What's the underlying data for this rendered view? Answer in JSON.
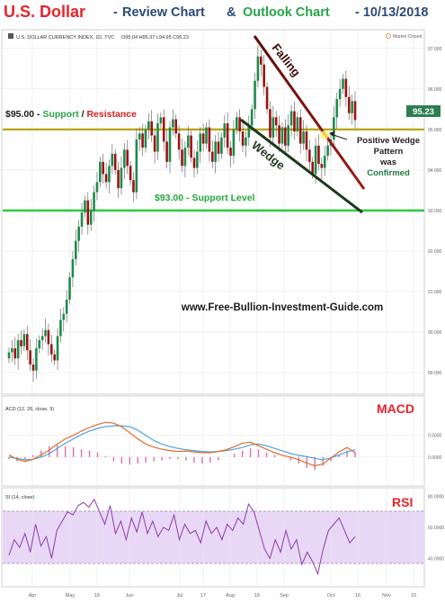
{
  "header": {
    "asset": "U.S. Dollar",
    "dash": "-",
    "review": "Review Chart",
    "amp": "&",
    "outlook": "Outlook Chart",
    "date_part": "- 10/13/2018"
  },
  "colors": {
    "asset": "#e8232a",
    "navy": "#2b4a78",
    "green": "#27a44a",
    "support": "#2ecc40",
    "resistance": "#d42020",
    "bull": "#1f8a4c",
    "bear": "#9e1212",
    "falling_line": "#6e0f0f",
    "wedge_line": "#1c3a1c",
    "macd": "#e46a2a",
    "signal": "#4da3e0",
    "hist": "#d86fa8",
    "rsi": "#8e3aa8",
    "rsi_band": "#e8d8f6",
    "grid": "#e6e6e6",
    "price_tag": "#2e7d4f"
  },
  "chart_data": [
    {
      "type": "candlestick",
      "legend": "U.S. DOLLAR CURRENCY INDEX, 1D, TVC",
      "ohlc_readout": "O95.04 H95.37 L94.95 C95.23",
      "market_status": "Market Closed",
      "last_price": "95.23",
      "x_tick_labels": [
        "Apr",
        "May",
        "16",
        "Jun",
        "Jul",
        "17",
        "Aug",
        "16",
        "Sep",
        "Oct",
        "16",
        "Nov",
        "16"
      ],
      "y_tick_labels": [
        "97.000",
        "96.000",
        "95.000",
        "94.000",
        "93.000",
        "92.000",
        "91.000",
        "90.000",
        "89.000"
      ],
      "ylim": [
        88.6,
        97.35
      ],
      "close": [
        89.5,
        89.6,
        89.35,
        89.8,
        89.65,
        89.95,
        89.55,
        89.2,
        89.05,
        89.6,
        89.8,
        89.9,
        90.05,
        89.7,
        89.45,
        89.3,
        89.9,
        90.3,
        90.45,
        90.8,
        91.35,
        91.8,
        92.25,
        92.6,
        92.95,
        93.25,
        92.65,
        93.0,
        93.45,
        93.7,
        94.2,
        93.9,
        93.7,
        94.1,
        94.4,
        94.0,
        93.55,
        94.05,
        94.5,
        94.1,
        93.75,
        93.45,
        94.75,
        94.9,
        94.55,
        95.0,
        95.2,
        94.85,
        94.45,
        95.15,
        95.3,
        94.7,
        94.2,
        95.05,
        95.25,
        94.9,
        94.5,
        94.1,
        94.55,
        94.85,
        94.3,
        94.05,
        94.45,
        94.9,
        94.65,
        95.05,
        94.45,
        94.2,
        94.7,
        94.4,
        94.8,
        95.15,
        94.55,
        94.35,
        95.0,
        95.3,
        94.95,
        94.6,
        94.8,
        95.1,
        95.5,
        96.2,
        96.8,
        96.6,
        96.05,
        95.5,
        94.8,
        95.3,
        95.1,
        94.65,
        95.05,
        94.6,
        95.1,
        95.45,
        94.95,
        95.3,
        94.65,
        94.95,
        94.5,
        94.2,
        93.9,
        94.6,
        94.15,
        94.05,
        94.35,
        94.6,
        94.75,
        95.3,
        95.75,
        96.0,
        96.25,
        95.8,
        95.4,
        95.7,
        95.23
      ],
      "annotations": {
        "support_resistance": {
          "value": 95.0,
          "label_prefix": "$95.00 - ",
          "support": "Support",
          "slash": " / ",
          "resistance": "Resistance"
        },
        "support": {
          "value": 93.0,
          "label": "$93.00 - Support Level"
        },
        "falling": "Falling",
        "wedge": "Wedge",
        "pattern": [
          "Positive Wedge",
          "Pattern",
          "was",
          "Confirmed"
        ],
        "watermark": "www.Free-Bullion-Investment-Guide.com"
      }
    },
    {
      "type": "line",
      "title": "MACD",
      "legend": "ACD (12, 26, close, 9)",
      "y_tick_labels": [
        "0.5000",
        "0.0000"
      ],
      "ylim": [
        -0.5,
        0.95
      ],
      "series": [
        {
          "name": "MACD",
          "values": [
            0.0,
            -0.03,
            -0.06,
            -0.05,
            0.0,
            0.08,
            0.2,
            0.32,
            0.42,
            0.52,
            0.6,
            0.66,
            0.7,
            0.72,
            0.72,
            0.7,
            0.62,
            0.5,
            0.38,
            0.3,
            0.24,
            0.2,
            0.17,
            0.15,
            0.13,
            0.12,
            0.13,
            0.15,
            0.18,
            0.22,
            0.28,
            0.3,
            0.26,
            0.2,
            0.14,
            0.08,
            0.04,
            0.01,
            -0.03,
            -0.06,
            -0.02,
            0.05,
            0.12,
            0.17
          ]
        },
        {
          "name": "Signal",
          "values": [
            0.05,
            -0.05,
            -0.1,
            -0.05,
            0.05,
            0.16,
            0.3,
            0.42,
            0.5,
            0.6,
            0.68,
            0.75,
            0.8,
            0.78,
            0.7,
            0.56,
            0.42,
            0.3,
            0.23,
            0.18,
            0.15,
            0.13,
            0.14,
            0.12,
            0.1,
            0.1,
            0.13,
            0.17,
            0.24,
            0.32,
            0.34,
            0.26,
            0.18,
            0.1,
            0.04,
            0.0,
            -0.06,
            -0.14,
            -0.2,
            -0.16,
            -0.02,
            0.12,
            0.22,
            0.1
          ]
        },
        {
          "name": "Histogram",
          "values": [
            -0.02,
            -0.04,
            -0.03,
            0.02,
            0.06,
            0.1,
            0.11,
            0.1,
            0.09,
            0.07,
            0.06,
            0.04,
            0.01,
            -0.04,
            -0.06,
            -0.07,
            -0.06,
            -0.05,
            -0.04,
            -0.03,
            -0.02,
            -0.02,
            -0.03,
            -0.05,
            -0.06,
            -0.05,
            -0.03,
            0.0,
            0.03,
            0.06,
            0.08,
            0.07,
            0.04,
            0.02,
            0.0,
            -0.03,
            -0.06,
            -0.1,
            -0.12,
            -0.08,
            -0.04,
            0.02,
            0.06,
            0.05
          ]
        }
      ]
    },
    {
      "type": "line",
      "title": "RSI",
      "legend": "SI (14, close)",
      "y_tick_labels": [
        "80.0000",
        "60.0000",
        "40.0000"
      ],
      "ylim": [
        24,
        82
      ],
      "overbought": 70,
      "oversold": 30,
      "series": [
        {
          "name": "RSI",
          "values": [
            42,
            52,
            47,
            56,
            44,
            62,
            48,
            54,
            40,
            58,
            64,
            70,
            68,
            74,
            76,
            73,
            78,
            70,
            62,
            74,
            56,
            64,
            52,
            66,
            57,
            70,
            56,
            64,
            54,
            60,
            58,
            68,
            52,
            62,
            56,
            58,
            50,
            64,
            56,
            60,
            52,
            62,
            58,
            66,
            62,
            75,
            70,
            58,
            46,
            40,
            52,
            44,
            58,
            46,
            52,
            36,
            44,
            38,
            30,
            46,
            58,
            62,
            66,
            58,
            50,
            54
          ]
        }
      ]
    }
  ]
}
